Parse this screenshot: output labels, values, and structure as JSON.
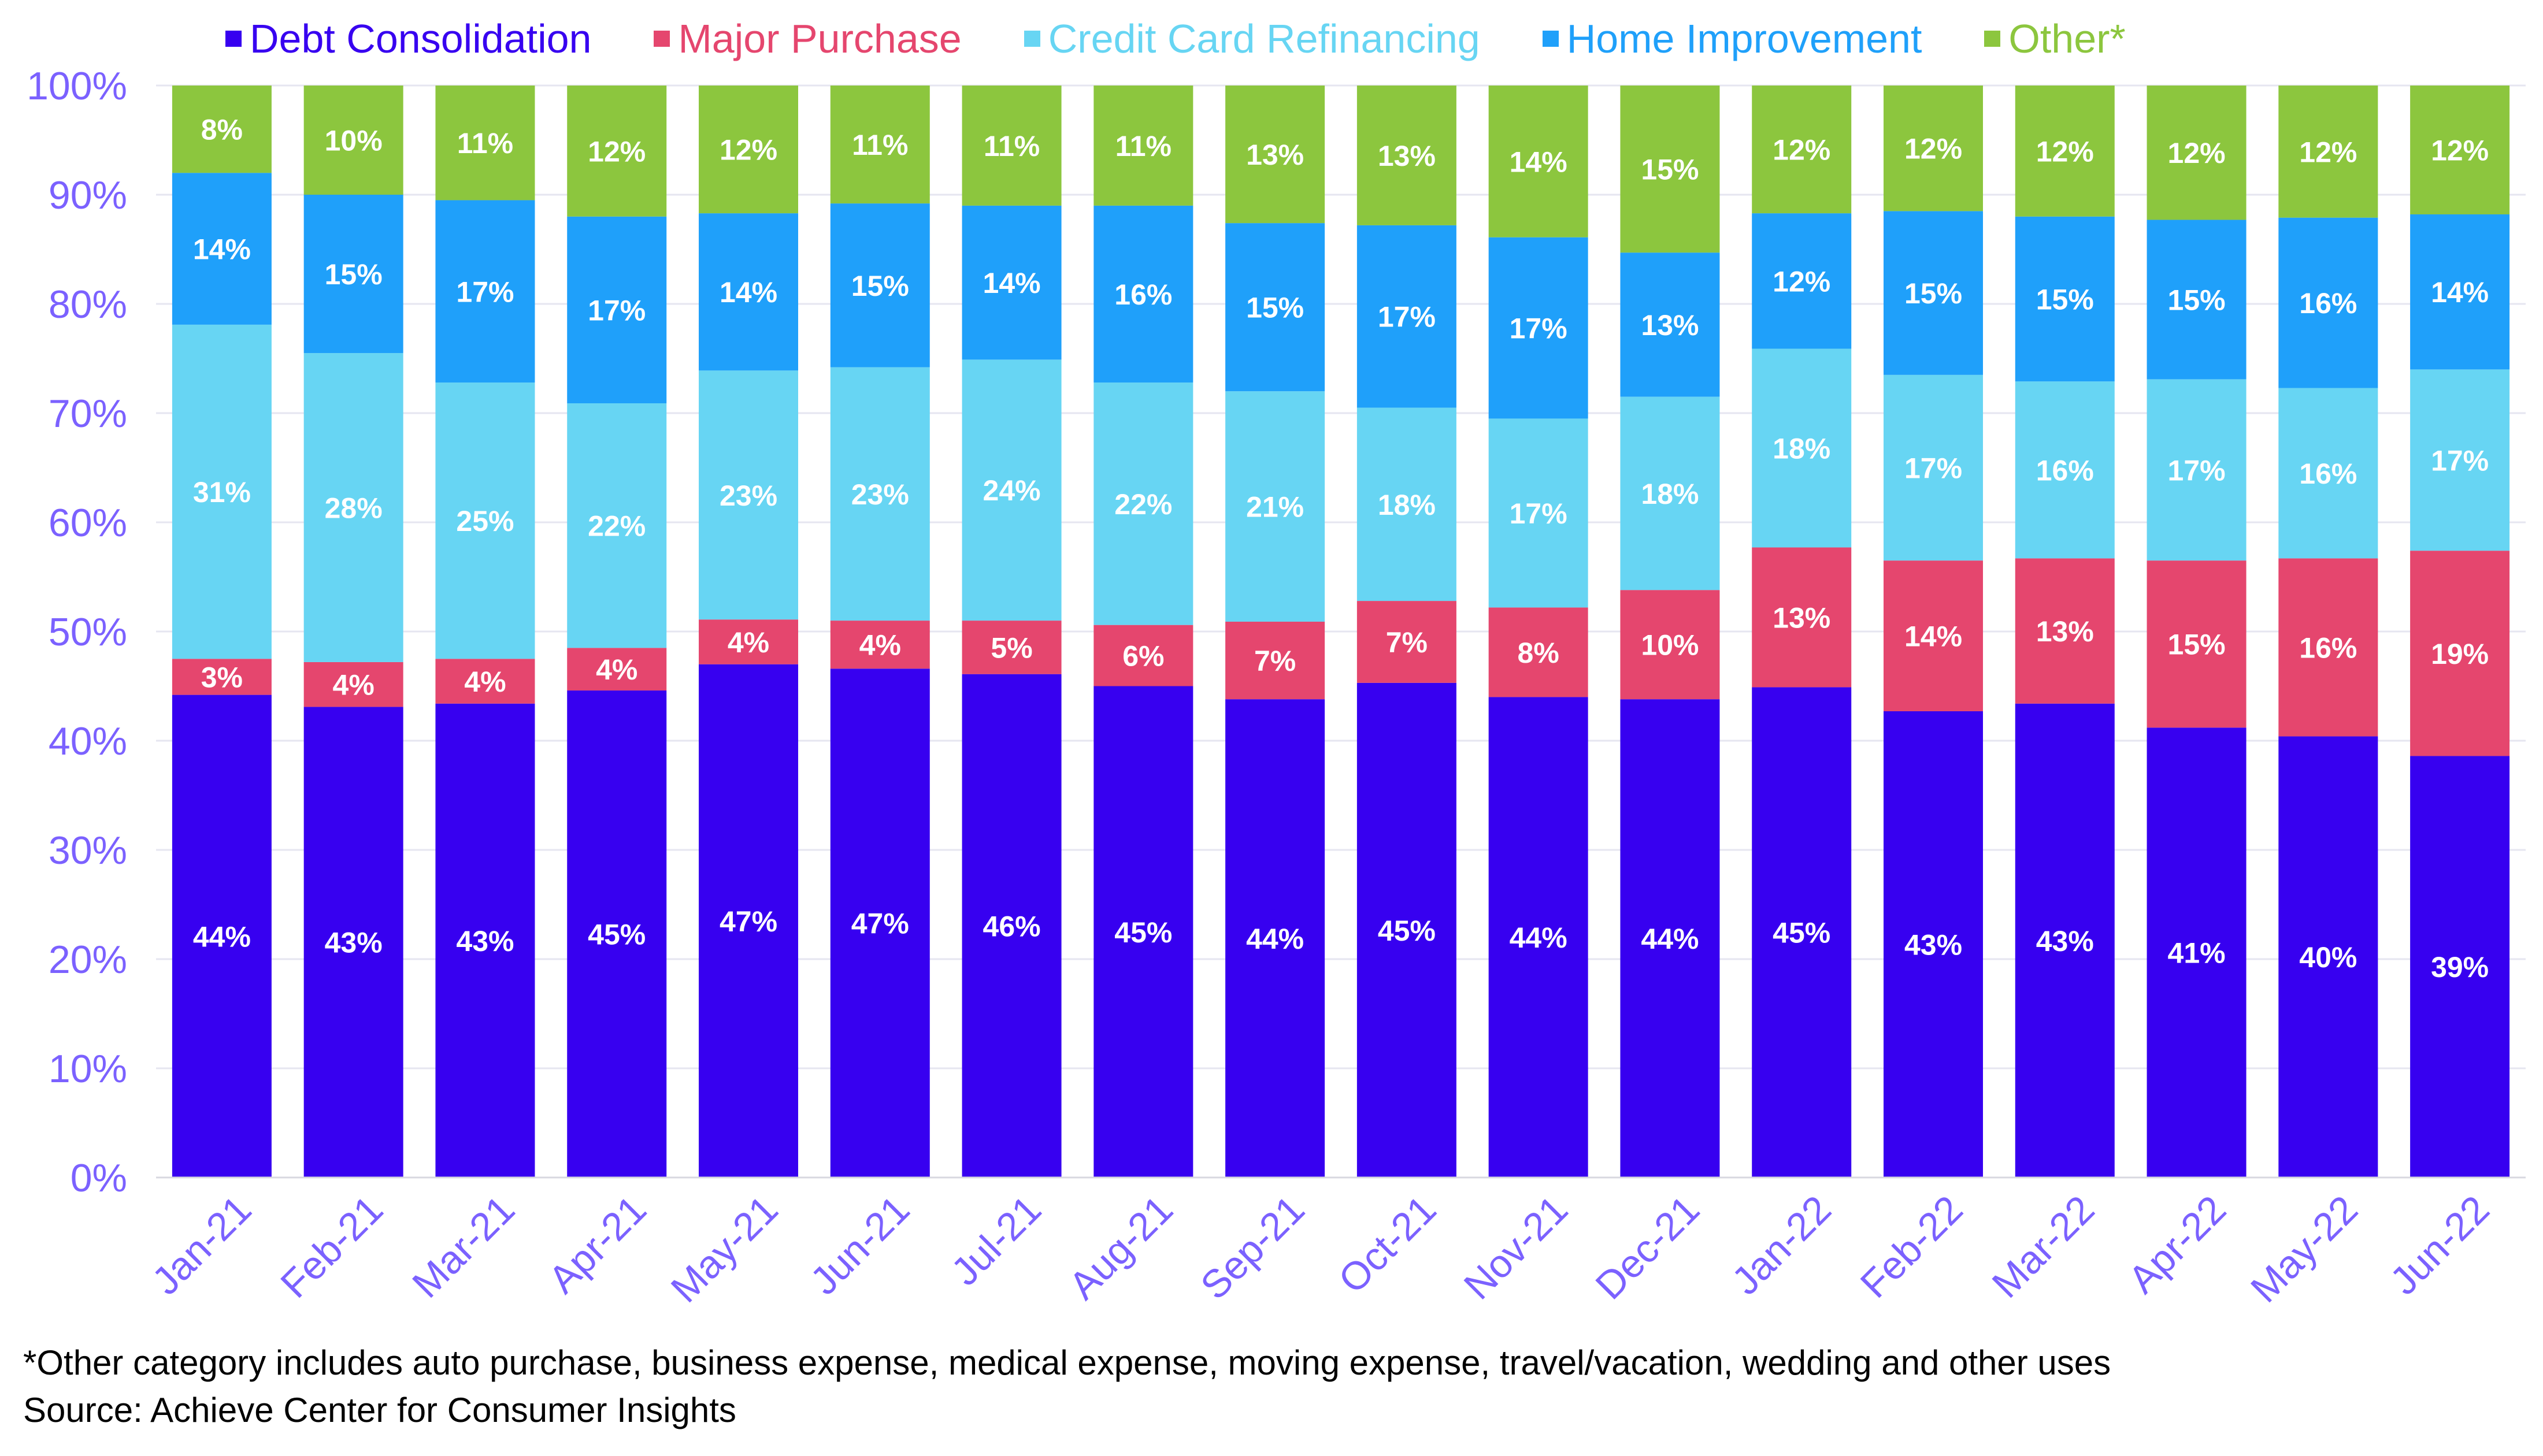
{
  "chart_data": {
    "type": "bar",
    "stacked": true,
    "categories": [
      "Jan-21",
      "Feb-21",
      "Mar-21",
      "Apr-21",
      "May-21",
      "Jun-21",
      "Jul-21",
      "Aug-21",
      "Sep-21",
      "Oct-21",
      "Nov-21",
      "Dec-21",
      "Jan-22",
      "Feb-22",
      "Mar-22",
      "Apr-22",
      "May-22",
      "Jun-22"
    ],
    "series": [
      {
        "name": "Debt Consolidation",
        "color": "#3700f0",
        "values": [
          44.2,
          43.1,
          43.4,
          44.6,
          47.0,
          46.6,
          46.1,
          45.0,
          43.8,
          45.3,
          44.0,
          43.8,
          44.9,
          42.7,
          43.4,
          41.2,
          40.4,
          38.6
        ],
        "labels": [
          "44%",
          "43%",
          "43%",
          "45%",
          "47%",
          "47%",
          "46%",
          "45%",
          "44%",
          "45%",
          "44%",
          "44%",
          "45%",
          "43%",
          "43%",
          "41%",
          "40%",
          "39%"
        ]
      },
      {
        "name": "Major Purchase",
        "color": "#e5466e",
        "values": [
          3.3,
          4.1,
          4.1,
          3.9,
          4.1,
          4.4,
          4.9,
          5.6,
          7.1,
          7.5,
          8.2,
          10.0,
          12.8,
          13.8,
          13.3,
          15.3,
          16.3,
          18.8
        ],
        "labels": [
          "3%",
          "4%",
          "4%",
          "4%",
          "4%",
          "4%",
          "5%",
          "6%",
          "7%",
          "7%",
          "8%",
          "10%",
          "13%",
          "14%",
          "13%",
          "15%",
          "16%",
          "19%"
        ]
      },
      {
        "name": "Credit Card Refinancing",
        "color": "#67d5f3",
        "values": [
          30.6,
          28.3,
          25.3,
          22.4,
          22.8,
          23.2,
          23.9,
          22.2,
          21.1,
          17.7,
          17.3,
          17.7,
          18.2,
          17.0,
          16.2,
          16.6,
          15.6,
          16.6
        ],
        "labels": [
          "31%",
          "28%",
          "25%",
          "22%",
          "23%",
          "23%",
          "24%",
          "22%",
          "21%",
          "18%",
          "17%",
          "18%",
          "18%",
          "17%",
          "16%",
          "17%",
          "16%",
          "17%"
        ]
      },
      {
        "name": "Home Improvement",
        "color": "#1fa0fa",
        "values": [
          13.9,
          14.5,
          16.7,
          17.1,
          14.4,
          15.0,
          14.1,
          16.2,
          15.4,
          16.7,
          16.6,
          13.2,
          12.4,
          15.0,
          15.1,
          14.6,
          15.6,
          14.2
        ],
        "labels": [
          "14%",
          "15%",
          "17%",
          "17%",
          "14%",
          "15%",
          "14%",
          "16%",
          "15%",
          "17%",
          "17%",
          "13%",
          "12%",
          "15%",
          "15%",
          "15%",
          "16%",
          "14%"
        ]
      },
      {
        "name": "Other*",
        "color": "#8cc63e",
        "values": [
          8.0,
          10.0,
          10.5,
          12.0,
          11.7,
          10.8,
          11.0,
          11.0,
          12.6,
          12.8,
          13.9,
          15.3,
          11.7,
          11.5,
          12.0,
          12.3,
          12.1,
          11.8
        ],
        "labels": [
          "8%",
          "10%",
          "11%",
          "12%",
          "12%",
          "11%",
          "11%",
          "11%",
          "13%",
          "13%",
          "14%",
          "15%",
          "12%",
          "12%",
          "12%",
          "12%",
          "12%",
          "12%"
        ]
      }
    ],
    "y_ticks": [
      "0%",
      "10%",
      "20%",
      "30%",
      "40%",
      "50%",
      "60%",
      "70%",
      "80%",
      "90%",
      "100%"
    ],
    "ylim": [
      0,
      100
    ],
    "grid": true,
    "legend": "top",
    "axis_color": "#7b61ff",
    "gridline_color": "#e6e6f0"
  },
  "footnote": {
    "line1": "*Other category includes auto purchase, business expense, medical expense, moving expense, travel/vacation, wedding and other uses",
    "line2": "Source: Achieve Center for Consumer Insights"
  }
}
